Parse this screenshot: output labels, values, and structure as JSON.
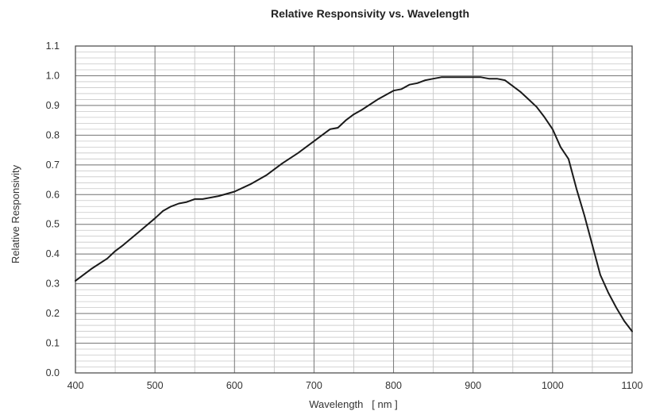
{
  "chart_data": {
    "type": "line",
    "title": "Relative Responsivity  vs.  Wavelength",
    "xlabel": "Wavelength   [ nm ]",
    "ylabel": "Relative Responsivity",
    "xlim": [
      400,
      1100
    ],
    "ylim": [
      0.0,
      1.1
    ],
    "x_major_ticks": [
      400,
      500,
      600,
      700,
      800,
      900,
      1000,
      1100
    ],
    "x_minor_step": 50,
    "y_ticks": [
      0.0,
      0.1,
      0.2,
      0.3,
      0.4,
      0.5,
      0.6,
      0.7,
      0.8,
      0.9,
      1.0,
      1.1
    ],
    "y_ticks_label": [
      "0.0",
      "0.1",
      "0.2",
      "0.3",
      "0.4",
      "0.5",
      "0.6",
      "0.7",
      "0.8",
      "0.9",
      "1.0",
      "1.1"
    ],
    "y_minor_step": 0.02,
    "grid": true,
    "legend": "none",
    "colors": {
      "line": "#1a1a1a",
      "grid_major": "#777777",
      "grid_minor": "#c8c8c8",
      "frame": "#444444"
    },
    "series": [
      {
        "x": [
          400,
          420,
          440,
          450,
          460,
          480,
          500,
          510,
          520,
          530,
          540,
          550,
          560,
          580,
          600,
          620,
          640,
          660,
          680,
          700,
          710,
          720,
          730,
          740,
          750,
          760,
          780,
          800,
          810,
          820,
          830,
          840,
          850,
          860,
          880,
          900,
          910,
          920,
          930,
          940,
          950,
          960,
          970,
          980,
          990,
          1000,
          1010,
          1020,
          1030,
          1040,
          1050,
          1060,
          1070,
          1080,
          1090,
          1100
        ],
        "y": [
          0.31,
          0.35,
          0.385,
          0.41,
          0.43,
          0.475,
          0.52,
          0.545,
          0.56,
          0.57,
          0.575,
          0.585,
          0.585,
          0.595,
          0.61,
          0.635,
          0.665,
          0.705,
          0.74,
          0.78,
          0.8,
          0.82,
          0.825,
          0.85,
          0.87,
          0.885,
          0.92,
          0.95,
          0.955,
          0.97,
          0.975,
          0.985,
          0.99,
          0.995,
          0.995,
          0.995,
          0.995,
          0.99,
          0.99,
          0.985,
          0.965,
          0.945,
          0.92,
          0.895,
          0.86,
          0.82,
          0.76,
          0.72,
          0.62,
          0.53,
          0.43,
          0.33,
          0.27,
          0.22,
          0.175,
          0.14
        ]
      }
    ]
  }
}
